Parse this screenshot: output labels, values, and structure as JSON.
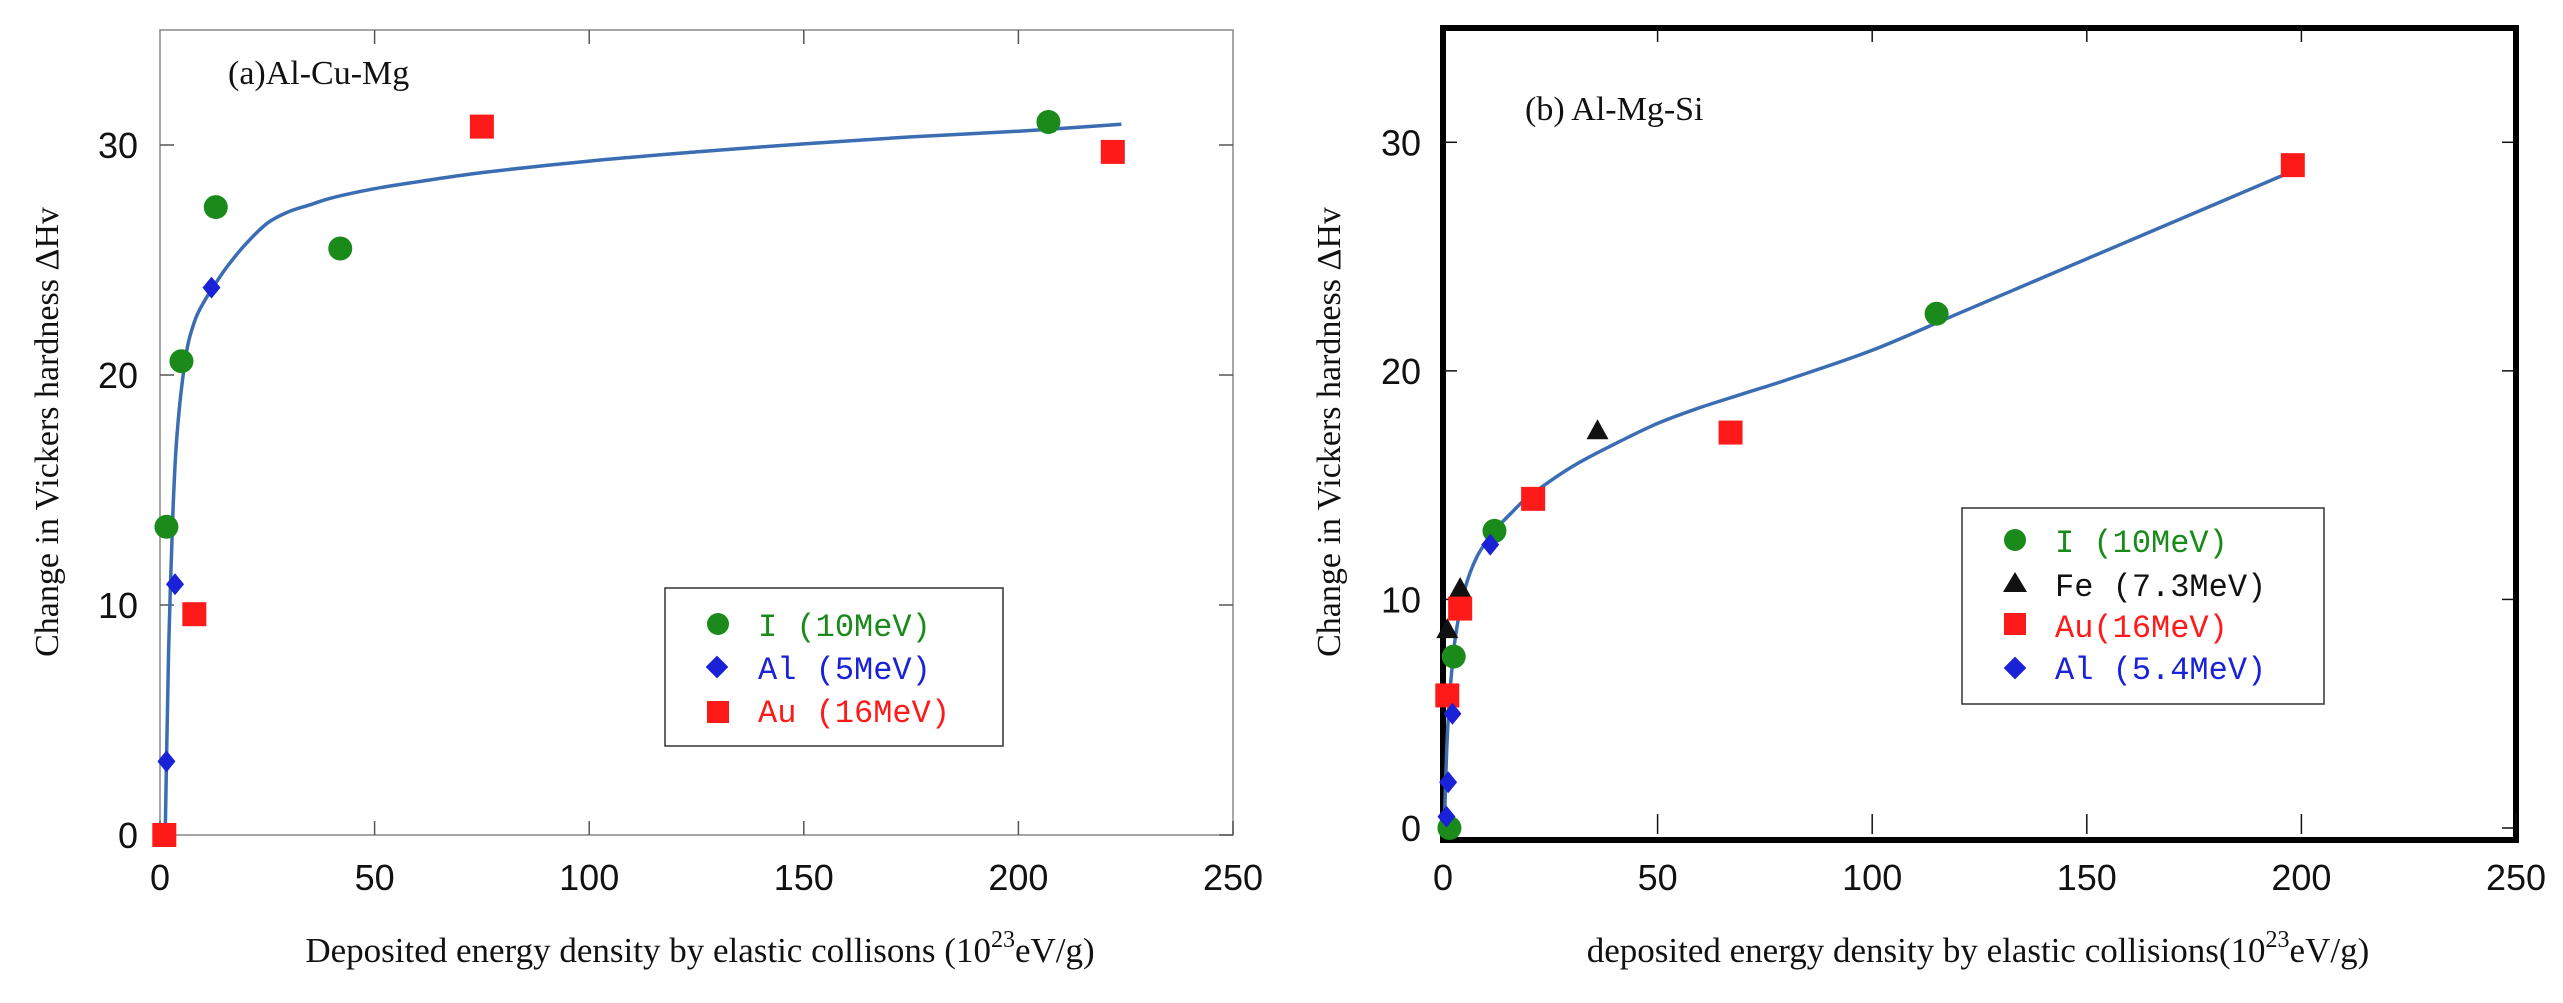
{
  "chart_data": [
    {
      "type": "scatter",
      "panel_label": "(a)Al-Cu-Mg",
      "xlabel_main": "Deposited energy density by elastic collisons (10",
      "xlabel_exp": "23",
      "xlabel_unit": "eV/g)",
      "ylabel": "Change in Vickers hardness ΔHv",
      "xlim": [
        0,
        250
      ],
      "ylim": [
        0,
        35
      ],
      "x_ticks": [
        "0",
        "50",
        "100",
        "150",
        "200",
        "250"
      ],
      "y_ticks": [
        "0",
        "10",
        "20",
        "30"
      ],
      "legend_position": "lower-right",
      "series": [
        {
          "name": "I (10MeV)",
          "marker": "circle",
          "color": "#1a8a1a",
          "text_color": "#1a8a1a",
          "x": [
            1.5,
            5,
            13,
            42,
            207
          ],
          "y": [
            13.4,
            20.6,
            27.3,
            25.5,
            31
          ]
        },
        {
          "name": "Al (5MeV)",
          "marker": "diamond",
          "color": "#1a22d8",
          "text_color": "#1a22d8",
          "x": [
            1.5,
            3.5,
            12
          ],
          "y": [
            3.2,
            10.9,
            23.8
          ]
        },
        {
          "name": "Au (16MeV)",
          "marker": "square",
          "color": "#ff1a1a",
          "text_color": "#ff1a1a",
          "x": [
            1,
            8,
            75,
            222
          ],
          "y": [
            0,
            9.6,
            30.8,
            29.7
          ]
        }
      ],
      "fit_curve": {
        "color": "#3b6db3",
        "x": [
          1.2,
          1.5,
          2,
          3,
          4,
          6,
          8,
          10,
          13,
          16,
          20,
          25,
          30,
          35,
          40,
          50,
          60,
          75,
          100,
          125,
          150,
          175,
          200,
          224
        ],
        "y": [
          0,
          3,
          8,
          14,
          17.5,
          20.8,
          22.3,
          23.1,
          24,
          24.8,
          25.7,
          26.6,
          27.1,
          27.4,
          27.7,
          28.1,
          28.4,
          28.8,
          29.3,
          29.7,
          30.05,
          30.35,
          30.6,
          30.9
        ]
      }
    },
    {
      "type": "scatter",
      "panel_label": "(b) Al-Mg-Si",
      "xlabel_main": "deposited energy density by elastic collisions(10",
      "xlabel_exp": "23",
      "xlabel_unit": "eV/g)",
      "ylabel": "Change in Vickers hardness ΔHv",
      "xlim": [
        0,
        250
      ],
      "ylim": [
        0,
        35
      ],
      "x_ticks": [
        "0",
        "50",
        "100",
        "150",
        "200",
        "250"
      ],
      "y_ticks": [
        "0",
        "10",
        "20",
        "30"
      ],
      "legend_position": "center-right",
      "series": [
        {
          "name": "I (10MeV)",
          "marker": "circle",
          "color": "#1a8a1a",
          "text_color": "#1a8a1a",
          "x": [
            1.5,
            2.5,
            12,
            115
          ],
          "y": [
            0,
            7.5,
            13,
            22.5
          ]
        },
        {
          "name": "Fe (7.3MeV)",
          "marker": "triangle",
          "color": "#111111",
          "text_color": "#111111",
          "x": [
            1,
            4,
            36
          ],
          "y": [
            8.7,
            10.5,
            17.4
          ]
        },
        {
          "name": "Au(16MeV)",
          "marker": "square",
          "color": "#ff1a1a",
          "text_color": "#ff1a1a",
          "x": [
            1,
            4,
            21,
            67,
            198
          ],
          "y": [
            5.8,
            9.6,
            14.4,
            17.3,
            29
          ]
        },
        {
          "name": "Al (5.4MeV)",
          "marker": "diamond",
          "color": "#1a22d8",
          "text_color": "#1a22d8",
          "x": [
            0.8,
            1.2,
            2.2,
            11
          ],
          "y": [
            0.5,
            2,
            5,
            12.4
          ]
        }
      ],
      "fit_curve": {
        "color": "#3b6db3",
        "x": [
          0.3,
          0.6,
          1,
          1.5,
          2,
          3,
          5,
          8,
          12,
          16,
          20,
          30,
          40,
          50,
          60,
          70,
          80,
          100,
          120,
          140,
          160,
          180,
          200
        ],
        "y": [
          0,
          2,
          4,
          5.6,
          6.8,
          8.5,
          10.4,
          11.9,
          13,
          13.8,
          14.5,
          15.8,
          16.8,
          17.7,
          18.4,
          19,
          19.6,
          20.9,
          22.5,
          24.1,
          25.7,
          27.3,
          28.9
        ]
      }
    }
  ]
}
